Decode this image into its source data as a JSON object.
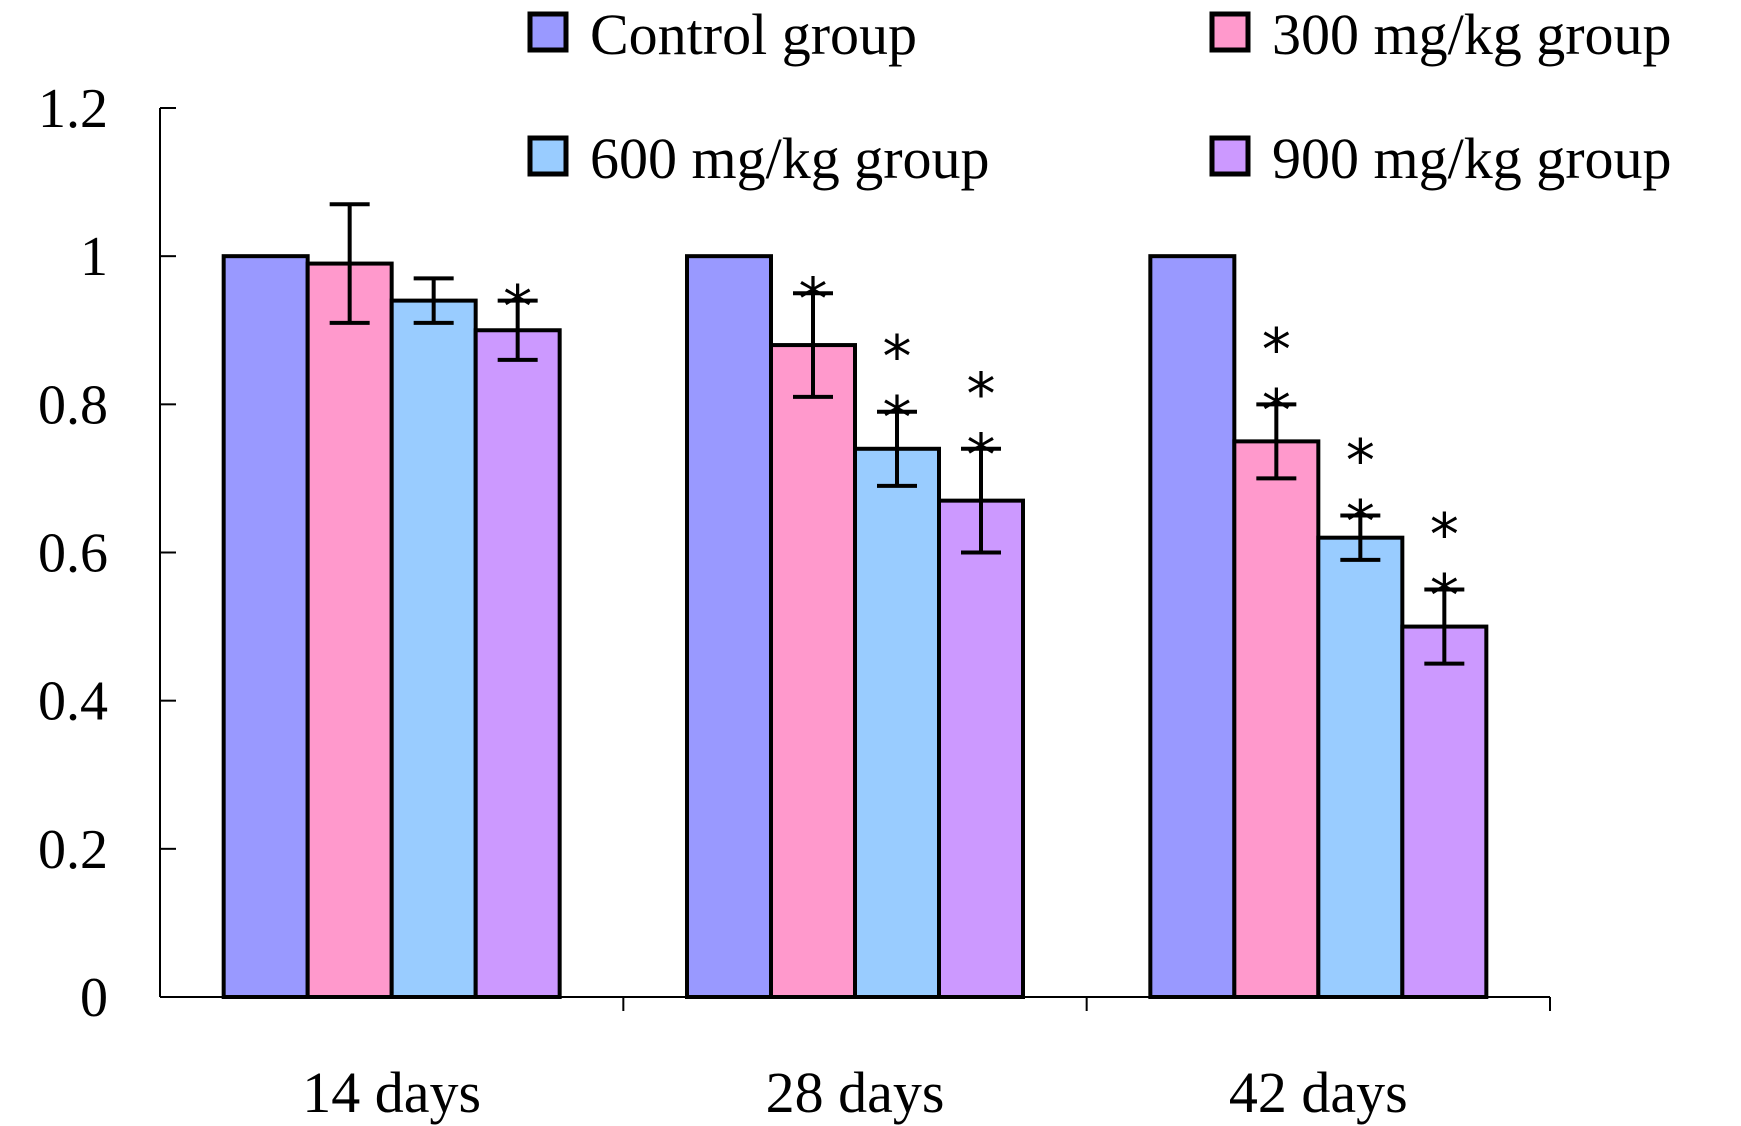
{
  "chart_data": {
    "type": "bar",
    "title": "",
    "xlabel": "",
    "ylabel": "",
    "ylim": [
      0,
      1.2
    ],
    "yticks": [
      "0",
      "0.2",
      "0.4",
      "0.6",
      "0.8",
      "1",
      "1.2"
    ],
    "categories": [
      "14 days",
      "28 days",
      "42 days"
    ],
    "series": [
      {
        "name": "Control group",
        "color": "#9999ff",
        "values": [
          1,
          1,
          1
        ],
        "errors": [
          0,
          0,
          0
        ],
        "marks": [
          "",
          "",
          ""
        ]
      },
      {
        "name": "300 mg/kg group",
        "color": "#ff99cc",
        "values": [
          0.99,
          0.88,
          0.75
        ],
        "errors": [
          0.08,
          0.07,
          0.05
        ],
        "marks": [
          "",
          "*",
          "**"
        ]
      },
      {
        "name": "600 mg/kg group",
        "color": "#99ccff",
        "values": [
          0.94,
          0.74,
          0.62
        ],
        "errors": [
          0.03,
          0.05,
          0.03
        ],
        "marks": [
          "",
          "**",
          "**"
        ]
      },
      {
        "name": "900 mg/kg group",
        "color": "#cc99ff",
        "values": [
          0.9,
          0.67,
          0.5
        ],
        "errors": [
          0.04,
          0.07,
          0.05
        ],
        "marks": [
          "*",
          "**",
          "**"
        ]
      }
    ],
    "legend": "top"
  }
}
